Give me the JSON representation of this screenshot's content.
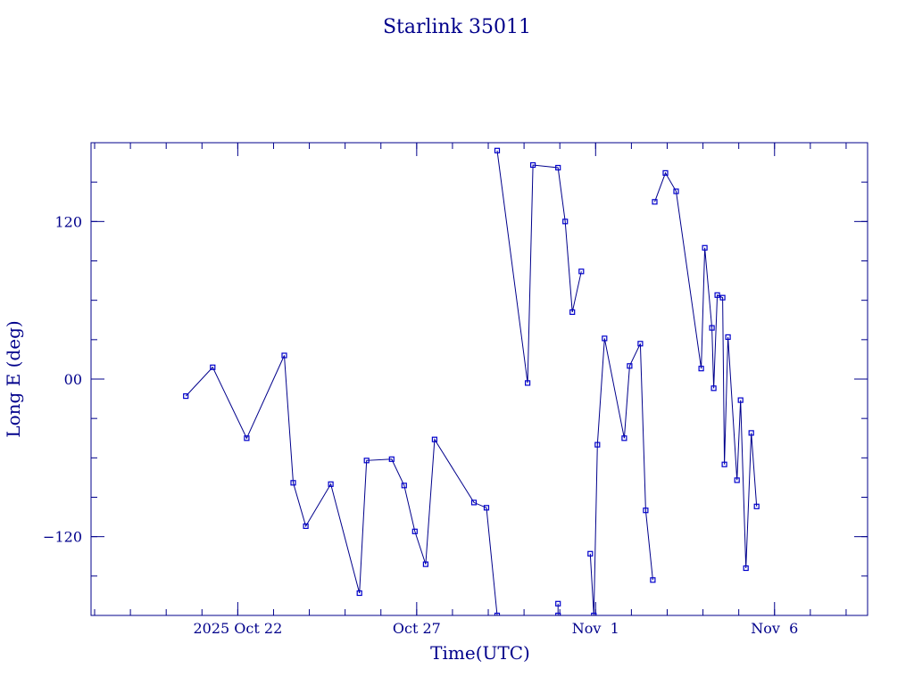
{
  "chart_data": {
    "type": "line",
    "title": "Starlink 35011",
    "xlabel": "Time(UTC)",
    "ylabel": "Long E (deg)",
    "xlim": [
      16.9,
      38.6
    ],
    "ylim": [
      -180,
      180
    ],
    "x_ticks": [
      {
        "value": 21.0,
        "label": "2025 Oct 22"
      },
      {
        "value": 26.0,
        "label": "Oct 27"
      },
      {
        "value": 31.0,
        "label": "Nov  1"
      },
      {
        "value": 36.0,
        "label": "Nov  6"
      }
    ],
    "x_minor_ticks": [
      17,
      18,
      19,
      20,
      21,
      22,
      23,
      24,
      25,
      26,
      27,
      28,
      29,
      30,
      31,
      32,
      33,
      34,
      35,
      36,
      37,
      38
    ],
    "y_ticks": [
      {
        "value": 120,
        "label": "120"
      },
      {
        "value": 0,
        "label": "00"
      },
      {
        "value": -120,
        "label": "−120"
      }
    ],
    "y_minor_ticks": [
      -150,
      -120,
      -90,
      -60,
      -30,
      0,
      30,
      60,
      90,
      120,
      150
    ],
    "grid": false,
    "series": [
      {
        "x": [
          19.55,
          20.3,
          21.25,
          22.3,
          22.55,
          22.9,
          23.6,
          24.4,
          24.6,
          25.3,
          25.65,
          25.95,
          26.25,
          26.5,
          27.6,
          27.95,
          28.25
        ],
        "y": [
          -13,
          9,
          -45,
          18,
          -79,
          -112,
          -80,
          -163,
          -62,
          -61,
          -81,
          -116,
          -141,
          -46,
          -94,
          -98,
          -180
        ]
      },
      {
        "x": [
          28.25,
          29.1,
          29.25,
          29.95,
          30.15,
          30.35,
          30.6
        ],
        "y": [
          174,
          -3,
          163,
          161,
          120,
          51,
          82
        ]
      },
      {
        "x": [
          29.95,
          29.95
        ],
        "y": [
          -171,
          -180
        ]
      },
      {
        "x": [
          30.85,
          30.95,
          31.05,
          31.25,
          31.8,
          31.95,
          32.25,
          32.4,
          32.6
        ],
        "y": [
          -133,
          -180,
          -50,
          31,
          -45,
          10,
          27,
          -100,
          -153
        ]
      },
      {
        "x": [
          32.65,
          32.95,
          33.25,
          33.95,
          34.05,
          34.25,
          34.3,
          34.4,
          34.55,
          34.6,
          34.7,
          34.95,
          35.05,
          35.2,
          35.35,
          35.5
        ],
        "y": [
          135,
          157,
          143,
          8,
          100,
          39,
          -7,
          64,
          62,
          -65,
          32,
          -77,
          -16,
          -144,
          -41,
          -97
        ]
      }
    ]
  }
}
